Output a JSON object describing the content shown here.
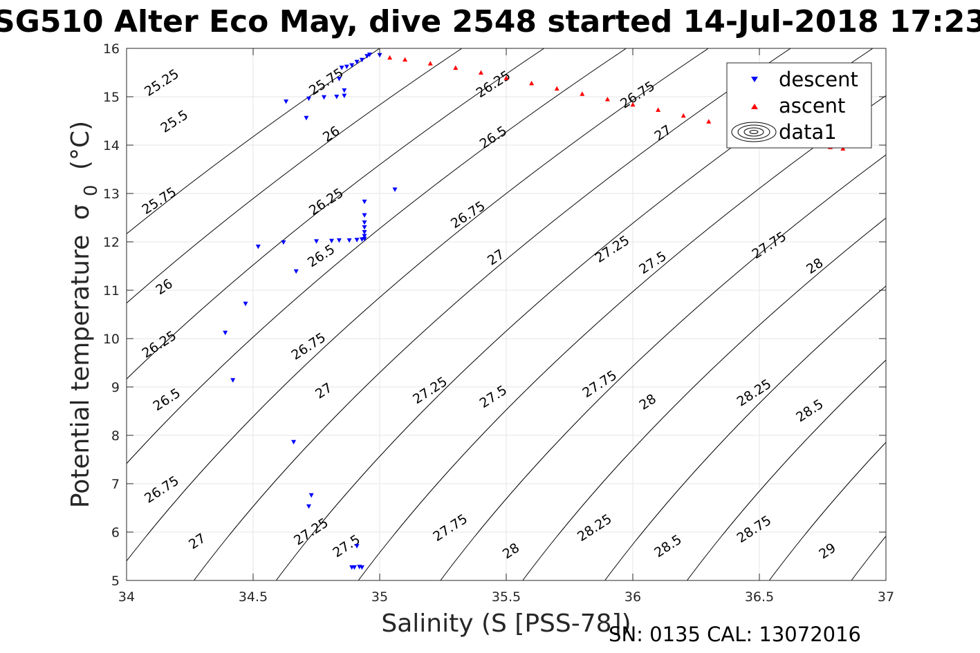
{
  "chart_data": {
    "type": "scatter",
    "title": "SG510 Alter Eco May, dive 2548 started 14-Jul-2018 17:23",
    "xlabel": "Salinity (S [PSS-78])",
    "ylabel_main": "Potential temperature",
    "ylabel_symbol": "σ",
    "ylabel_sub": "0",
    "ylabel_unit": "(°C)",
    "xlim": [
      34,
      37
    ],
    "ylim": [
      5,
      16
    ],
    "x_ticks": [
      34,
      34.5,
      35,
      35.5,
      36,
      36.5,
      37
    ],
    "x_tick_labels": [
      "34",
      "34.5",
      "35",
      "35.5",
      "36",
      "36.5",
      "37"
    ],
    "y_ticks": [
      5,
      6,
      7,
      8,
      9,
      10,
      11,
      12,
      13,
      14,
      15,
      16
    ],
    "y_tick_labels": [
      "5",
      "6",
      "7",
      "8",
      "9",
      "10",
      "11",
      "12",
      "13",
      "14",
      "15",
      "16"
    ],
    "grid": true,
    "legend_position": "top-right",
    "legend": [
      {
        "label": "descent",
        "marker": "triangle-down",
        "color": "#0000ff"
      },
      {
        "label": "ascent",
        "marker": "triangle-up",
        "color": "#ff0000"
      },
      {
        "label": "data1",
        "marker": "contour-ellipses",
        "color": "#000000"
      }
    ],
    "contours": {
      "color": "#000000",
      "levels": [
        25.25,
        25.5,
        25.75,
        26,
        26.25,
        26.5,
        26.75,
        27,
        27.25,
        27.5,
        27.75,
        28,
        28.25,
        28.5,
        28.75,
        29
      ],
      "labels": [
        {
          "text": "25.25",
          "x": 34.14,
          "y": 15.28
        },
        {
          "text": "25.5",
          "x": 34.19,
          "y": 14.48
        },
        {
          "text": "25.75",
          "x": 34.13,
          "y": 12.84
        },
        {
          "text": "26",
          "x": 34.15,
          "y": 11.06
        },
        {
          "text": "26.25",
          "x": 34.13,
          "y": 9.87
        },
        {
          "text": "26.5",
          "x": 34.16,
          "y": 8.73
        },
        {
          "text": "26.75",
          "x": 34.14,
          "y": 6.87
        },
        {
          "text": "27",
          "x": 34.28,
          "y": 5.8
        },
        {
          "text": "25.75",
          "x": 34.79,
          "y": 15.3
        },
        {
          "text": "26",
          "x": 34.81,
          "y": 14.22
        },
        {
          "text": "26.25",
          "x": 34.79,
          "y": 12.82
        },
        {
          "text": "26.5",
          "x": 34.77,
          "y": 11.7
        },
        {
          "text": "26.75",
          "x": 34.72,
          "y": 9.83
        },
        {
          "text": "27",
          "x": 34.78,
          "y": 8.91
        },
        {
          "text": "27.25",
          "x": 34.73,
          "y": 6.0
        },
        {
          "text": "27.5",
          "x": 34.87,
          "y": 5.7
        },
        {
          "text": "26.25",
          "x": 35.45,
          "y": 15.25
        },
        {
          "text": "26.5",
          "x": 35.45,
          "y": 14.15
        },
        {
          "text": "26.75",
          "x": 35.35,
          "y": 12.55
        },
        {
          "text": "27",
          "x": 35.46,
          "y": 11.67
        },
        {
          "text": "27.25",
          "x": 35.2,
          "y": 8.92
        },
        {
          "text": "27.5",
          "x": 35.45,
          "y": 8.79
        },
        {
          "text": "27.75",
          "x": 35.28,
          "y": 6.08
        },
        {
          "text": "28",
          "x": 35.52,
          "y": 5.6
        },
        {
          "text": "26.75",
          "x": 36.02,
          "y": 15.03
        },
        {
          "text": "27",
          "x": 36.12,
          "y": 14.24
        },
        {
          "text": "27.25",
          "x": 35.92,
          "y": 11.84
        },
        {
          "text": "27.5",
          "x": 36.08,
          "y": 11.56
        },
        {
          "text": "27.75",
          "x": 35.87,
          "y": 9.05
        },
        {
          "text": "28",
          "x": 36.06,
          "y": 8.68
        },
        {
          "text": "28.25",
          "x": 35.85,
          "y": 6.08
        },
        {
          "text": "28.5",
          "x": 36.14,
          "y": 5.7
        },
        {
          "text": "27.75",
          "x": 36.54,
          "y": 11.92
        },
        {
          "text": "28",
          "x": 36.72,
          "y": 11.49
        },
        {
          "text": "28.25",
          "x": 36.48,
          "y": 8.87
        },
        {
          "text": "28.5",
          "x": 36.7,
          "y": 8.5
        },
        {
          "text": "28.75",
          "x": 36.48,
          "y": 6.05
        },
        {
          "text": "29",
          "x": 36.77,
          "y": 5.6
        }
      ]
    },
    "series": [
      {
        "name": "descent",
        "marker": "triangle-down",
        "color": "#0000ff",
        "x": [
          34.96,
          35.0,
          34.95,
          34.93,
          34.91,
          34.89,
          34.87,
          34.85,
          34.84,
          34.83,
          34.86,
          34.86,
          34.78,
          34.72,
          34.63,
          34.71,
          35.06,
          34.94,
          34.94,
          34.94,
          34.94,
          34.94,
          34.94,
          34.94,
          34.93,
          34.91,
          34.88,
          34.84,
          34.81,
          34.75,
          34.62,
          34.52,
          34.67,
          34.47,
          34.39,
          34.42,
          34.66,
          34.73,
          34.72,
          34.91,
          34.9,
          34.92,
          34.93,
          34.89
        ],
        "y": [
          15.87,
          15.86,
          15.84,
          15.76,
          15.72,
          15.65,
          15.62,
          15.6,
          15.37,
          15.0,
          15.13,
          15.02,
          14.99,
          14.96,
          14.9,
          14.56,
          13.08,
          12.83,
          12.55,
          12.4,
          12.3,
          12.2,
          12.12,
          12.06,
          12.05,
          12.04,
          12.03,
          12.03,
          12.02,
          12.01,
          11.99,
          11.9,
          11.39,
          10.72,
          10.12,
          9.14,
          7.86,
          6.76,
          6.53,
          5.71,
          5.27,
          5.28,
          5.27,
          5.27
        ]
      },
      {
        "name": "ascent",
        "marker": "triangle-up",
        "color": "#ff0000",
        "x": [
          35.04,
          35.1,
          35.2,
          35.3,
          35.4,
          35.5,
          35.6,
          35.7,
          35.8,
          35.9,
          36.0,
          36.1,
          36.2,
          36.3,
          36.4,
          36.5,
          36.6,
          36.7,
          36.78,
          36.83
        ],
        "y": [
          15.81,
          15.77,
          15.69,
          15.6,
          15.5,
          15.39,
          15.28,
          15.17,
          15.06,
          14.95,
          14.84,
          14.73,
          14.61,
          14.49,
          14.36,
          14.24,
          14.12,
          14.02,
          13.96,
          13.93
        ]
      }
    ]
  },
  "footer": {
    "text": "SN: 0135  CAL: 13072016"
  }
}
